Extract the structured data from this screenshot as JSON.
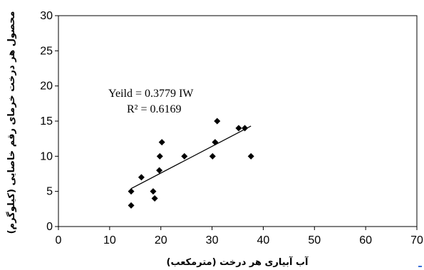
{
  "chart_data": {
    "type": "scatter",
    "title": "",
    "xlabel": "آب آبیاری هر درخت (مترمکعب)",
    "ylabel": "محصول هر درخت خرمای رقم خاصایی (کیلوگرم)",
    "xlim": [
      0,
      70
    ],
    "ylim": [
      0,
      30
    ],
    "xticks": [
      "0",
      "10",
      "20",
      "30",
      "40",
      "50",
      "60",
      "70"
    ],
    "yticks": [
      "0",
      "5",
      "10",
      "15",
      "20",
      "25",
      "30"
    ],
    "grid": false,
    "series": [
      {
        "marker": "diamond",
        "color": "#000000",
        "points": [
          [
            14.2,
            3
          ],
          [
            14.2,
            5
          ],
          [
            16.2,
            7
          ],
          [
            18.5,
            5
          ],
          [
            18.8,
            4
          ],
          [
            19.7,
            8
          ],
          [
            19.8,
            10
          ],
          [
            20.2,
            12
          ],
          [
            24.6,
            10
          ],
          [
            30.1,
            10
          ],
          [
            30.6,
            12
          ],
          [
            31.0,
            15
          ],
          [
            35.2,
            14
          ],
          [
            36.4,
            14
          ],
          [
            37.6,
            10
          ]
        ]
      }
    ],
    "trendline": {
      "x_range": [
        14.2,
        37.6
      ],
      "y_range": [
        5.4,
        14.3
      ],
      "color": "#000000"
    },
    "annotations": [
      "Yeild = 0.3779 IW",
      "R² = 0.6169"
    ]
  }
}
